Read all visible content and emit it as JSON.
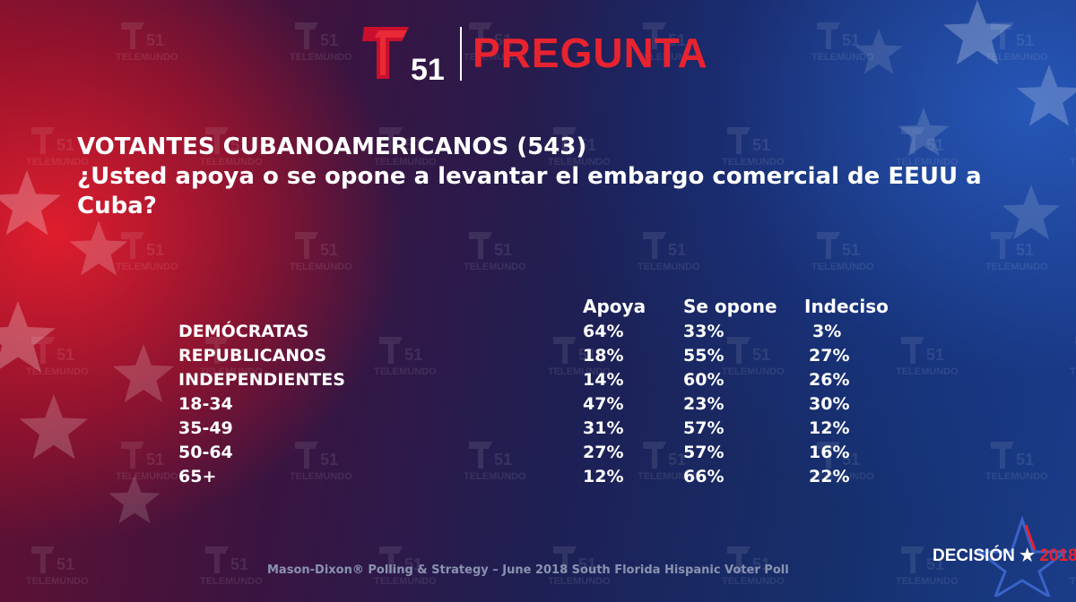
{
  "header": {
    "channel_number": "51",
    "title": "PREGUNTA"
  },
  "watermark": {
    "number": "51",
    "brand": "TELEMUNDO"
  },
  "question": {
    "line1": "VOTANTES CUBANOAMERICANOS (543)",
    "line2": "¿Usted apoya o se opone a levantar el embargo comercial de EEUU a Cuba?"
  },
  "chart_data": {
    "type": "table",
    "columns": [
      "Apoya",
      "Se opone",
      "Indeciso"
    ],
    "rows": [
      {
        "label": "DEMÓCRATAS",
        "values": [
          "64%",
          "33%",
          "3%"
        ]
      },
      {
        "label": "REPUBLICANOS",
        "values": [
          "18%",
          "55%",
          "27%"
        ]
      },
      {
        "label": "INDEPENDIENTES",
        "values": [
          "14%",
          "60%",
          "26%"
        ]
      },
      {
        "label": "18-34",
        "values": [
          "47%",
          "23%",
          "30%"
        ]
      },
      {
        "label": "35-49",
        "values": [
          "31%",
          "57%",
          "12%"
        ]
      },
      {
        "label": "50-64",
        "values": [
          "27%",
          "57%",
          "16%"
        ]
      },
      {
        "label": "65+",
        "values": [
          "12%",
          "66%",
          "22%"
        ]
      }
    ]
  },
  "footer": {
    "source": "Mason-Dixon® Polling & Strategy – June 2018 South Florida Hispanic Voter Poll"
  },
  "badge": {
    "word": "DECISIÓN",
    "star": "★",
    "year": "2018"
  },
  "colors": {
    "brand_red": "#e8232f",
    "text": "#ffffff"
  }
}
